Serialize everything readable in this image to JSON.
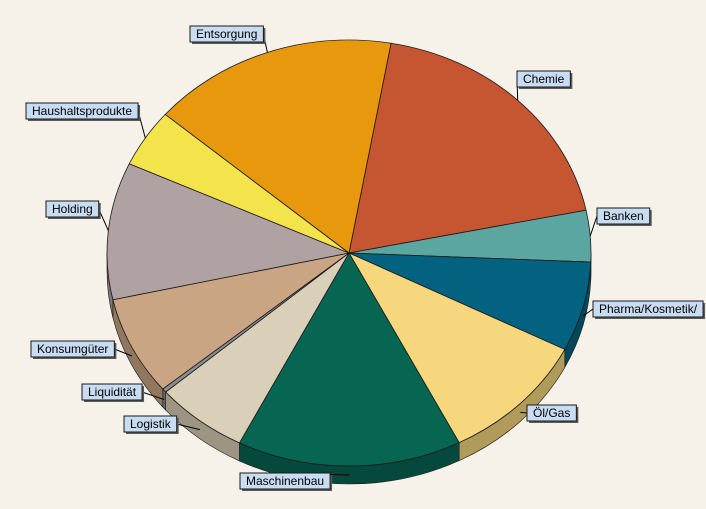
{
  "chart_data": {
    "type": "pie",
    "title": "",
    "style": "3d",
    "colors": {
      "background": "#f6f2ea",
      "label_background": "#c8dcf2"
    },
    "slices": [
      {
        "label": "Chemie",
        "value": 19.0,
        "color": "#c65532"
      },
      {
        "label": "Banken",
        "value": 3.9,
        "color": "#5ca6a2"
      },
      {
        "label": "Pharma/Kosmetik/",
        "value": 6.8,
        "color": "#02627f"
      },
      {
        "label": "Öl/Gas",
        "value": 10.0,
        "color": "#f6d77e"
      },
      {
        "label": "Maschinenbau",
        "value": 15.0,
        "color": "#066652"
      },
      {
        "label": "Logistik",
        "value": 6.2,
        "color": "#dacfb8"
      },
      {
        "label": "Liquidität",
        "value": 0.3,
        "color": "#8c8c8c"
      },
      {
        "label": "Konsumgüter",
        "value": 7.5,
        "color": "#c9a583"
      },
      {
        "label": "Holding",
        "value": 10.4,
        "color": "#b0a2a3"
      },
      {
        "label": "Haushaltsprodukte",
        "value": 4.4,
        "color": "#f4e44c"
      },
      {
        "label": "Entsorgung",
        "value": 16.5,
        "color": "#e8980c"
      }
    ]
  }
}
